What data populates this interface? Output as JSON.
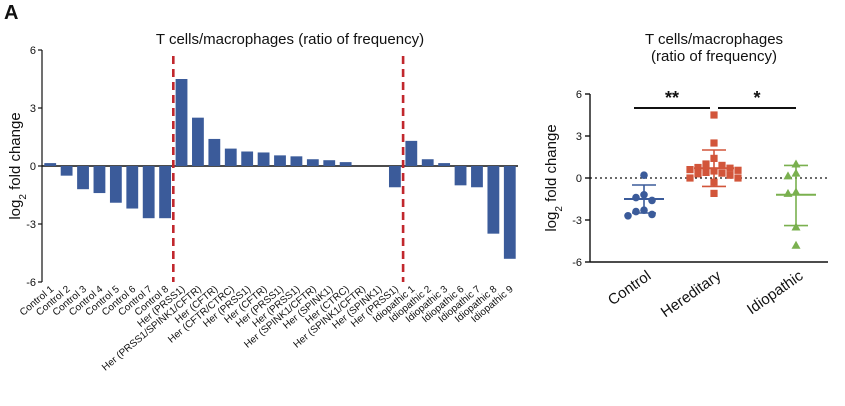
{
  "panel_letter": "A",
  "colors": {
    "bar": "#3b5b9a",
    "divider": "#c1272d",
    "control": "#3b5b9a",
    "hereditary": "#d2553a",
    "idiopathic": "#7ab04f"
  },
  "chart_data": [
    {
      "type": "bar",
      "title": "T cells/macrophages (ratio of frequency)",
      "ylabel": "log",
      "ylabel_sub": "2",
      "ylabel_rest": " fold change",
      "ylim": [
        -6,
        6
      ],
      "yticks": [
        -6,
        -3,
        0,
        3,
        6
      ],
      "categories": [
        "Control 1",
        "Control 2",
        "Control 3",
        "Control 4",
        "Control 5",
        "Control 6",
        "Control 7",
        "Control 8",
        "Her (PRSS1)",
        "Her (PRSS1/SPINK1/CFTR)",
        "Her (CFTR)",
        "Her (CFTR/CTRC)",
        "Her (PRSS1)",
        "Her (CFTR)",
        "Her (PRSS1)",
        "Her (PRSS1)",
        "Her (SPINK1/CFTR)",
        "Her (SPINK1)",
        "Her (CTRC)",
        "Her (SPINK1/CFTR)",
        "Her (SPINK1)",
        "Her (PRSS1)",
        "Idiopathic 1",
        "Idiopathic 2",
        "Idiopathic 3",
        "Idiopathic 6",
        "Idiopathic 7",
        "Idiopathic 8",
        "Idiopathic 9"
      ],
      "values": [
        0.15,
        -0.5,
        -1.2,
        -1.4,
        -1.9,
        -2.2,
        -2.7,
        -2.7,
        4.5,
        2.5,
        1.4,
        0.9,
        0.75,
        0.7,
        0.55,
        0.5,
        0.35,
        0.3,
        0.2,
        0.0,
        0.0,
        -1.1,
        1.3,
        0.35,
        0.15,
        -1.0,
        -1.1,
        -3.5,
        -4.8
      ],
      "dividers_after_index": [
        7,
        21
      ]
    },
    {
      "type": "scatter",
      "title": [
        "T cells/macrophages",
        "(ratio of frequency)"
      ],
      "ylabel": "log",
      "ylabel_sub": "2",
      "ylabel_rest": " fold change",
      "ylim": [
        -6,
        6
      ],
      "yticks": [
        -6,
        -3,
        0,
        3,
        6
      ],
      "categories": [
        "Control",
        "Hereditary",
        "Idiopathic"
      ],
      "series": [
        {
          "name": "Control",
          "marker": "circle",
          "mean": -1.5,
          "sd_low": -2.5,
          "sd_high": -0.5,
          "values": [
            0.2,
            -1.4,
            -1.6,
            -2.4,
            -2.6,
            -2.7,
            -1.2,
            -2.3
          ]
        },
        {
          "name": "Hereditary",
          "marker": "square",
          "mean": 0.7,
          "sd_low": -0.6,
          "sd_high": 2.0,
          "values": [
            4.5,
            2.5,
            1.4,
            0.9,
            0.75,
            0.7,
            0.55,
            0.5,
            0.35,
            0.3,
            0.2,
            0.0,
            0.0,
            -1.1,
            1.0,
            0.6,
            0.4,
            -0.3
          ]
        },
        {
          "name": "Idiopathic",
          "marker": "triangle",
          "mean": -1.2,
          "sd_low": -3.4,
          "sd_high": 0.9,
          "values": [
            1.0,
            0.35,
            0.15,
            -1.0,
            -1.1,
            -3.5,
            -4.8
          ]
        }
      ],
      "significance": [
        {
          "from": 0,
          "to": 1,
          "label": "**"
        },
        {
          "from": 1,
          "to": 2,
          "label": "*"
        }
      ],
      "reference_line": 0
    }
  ]
}
